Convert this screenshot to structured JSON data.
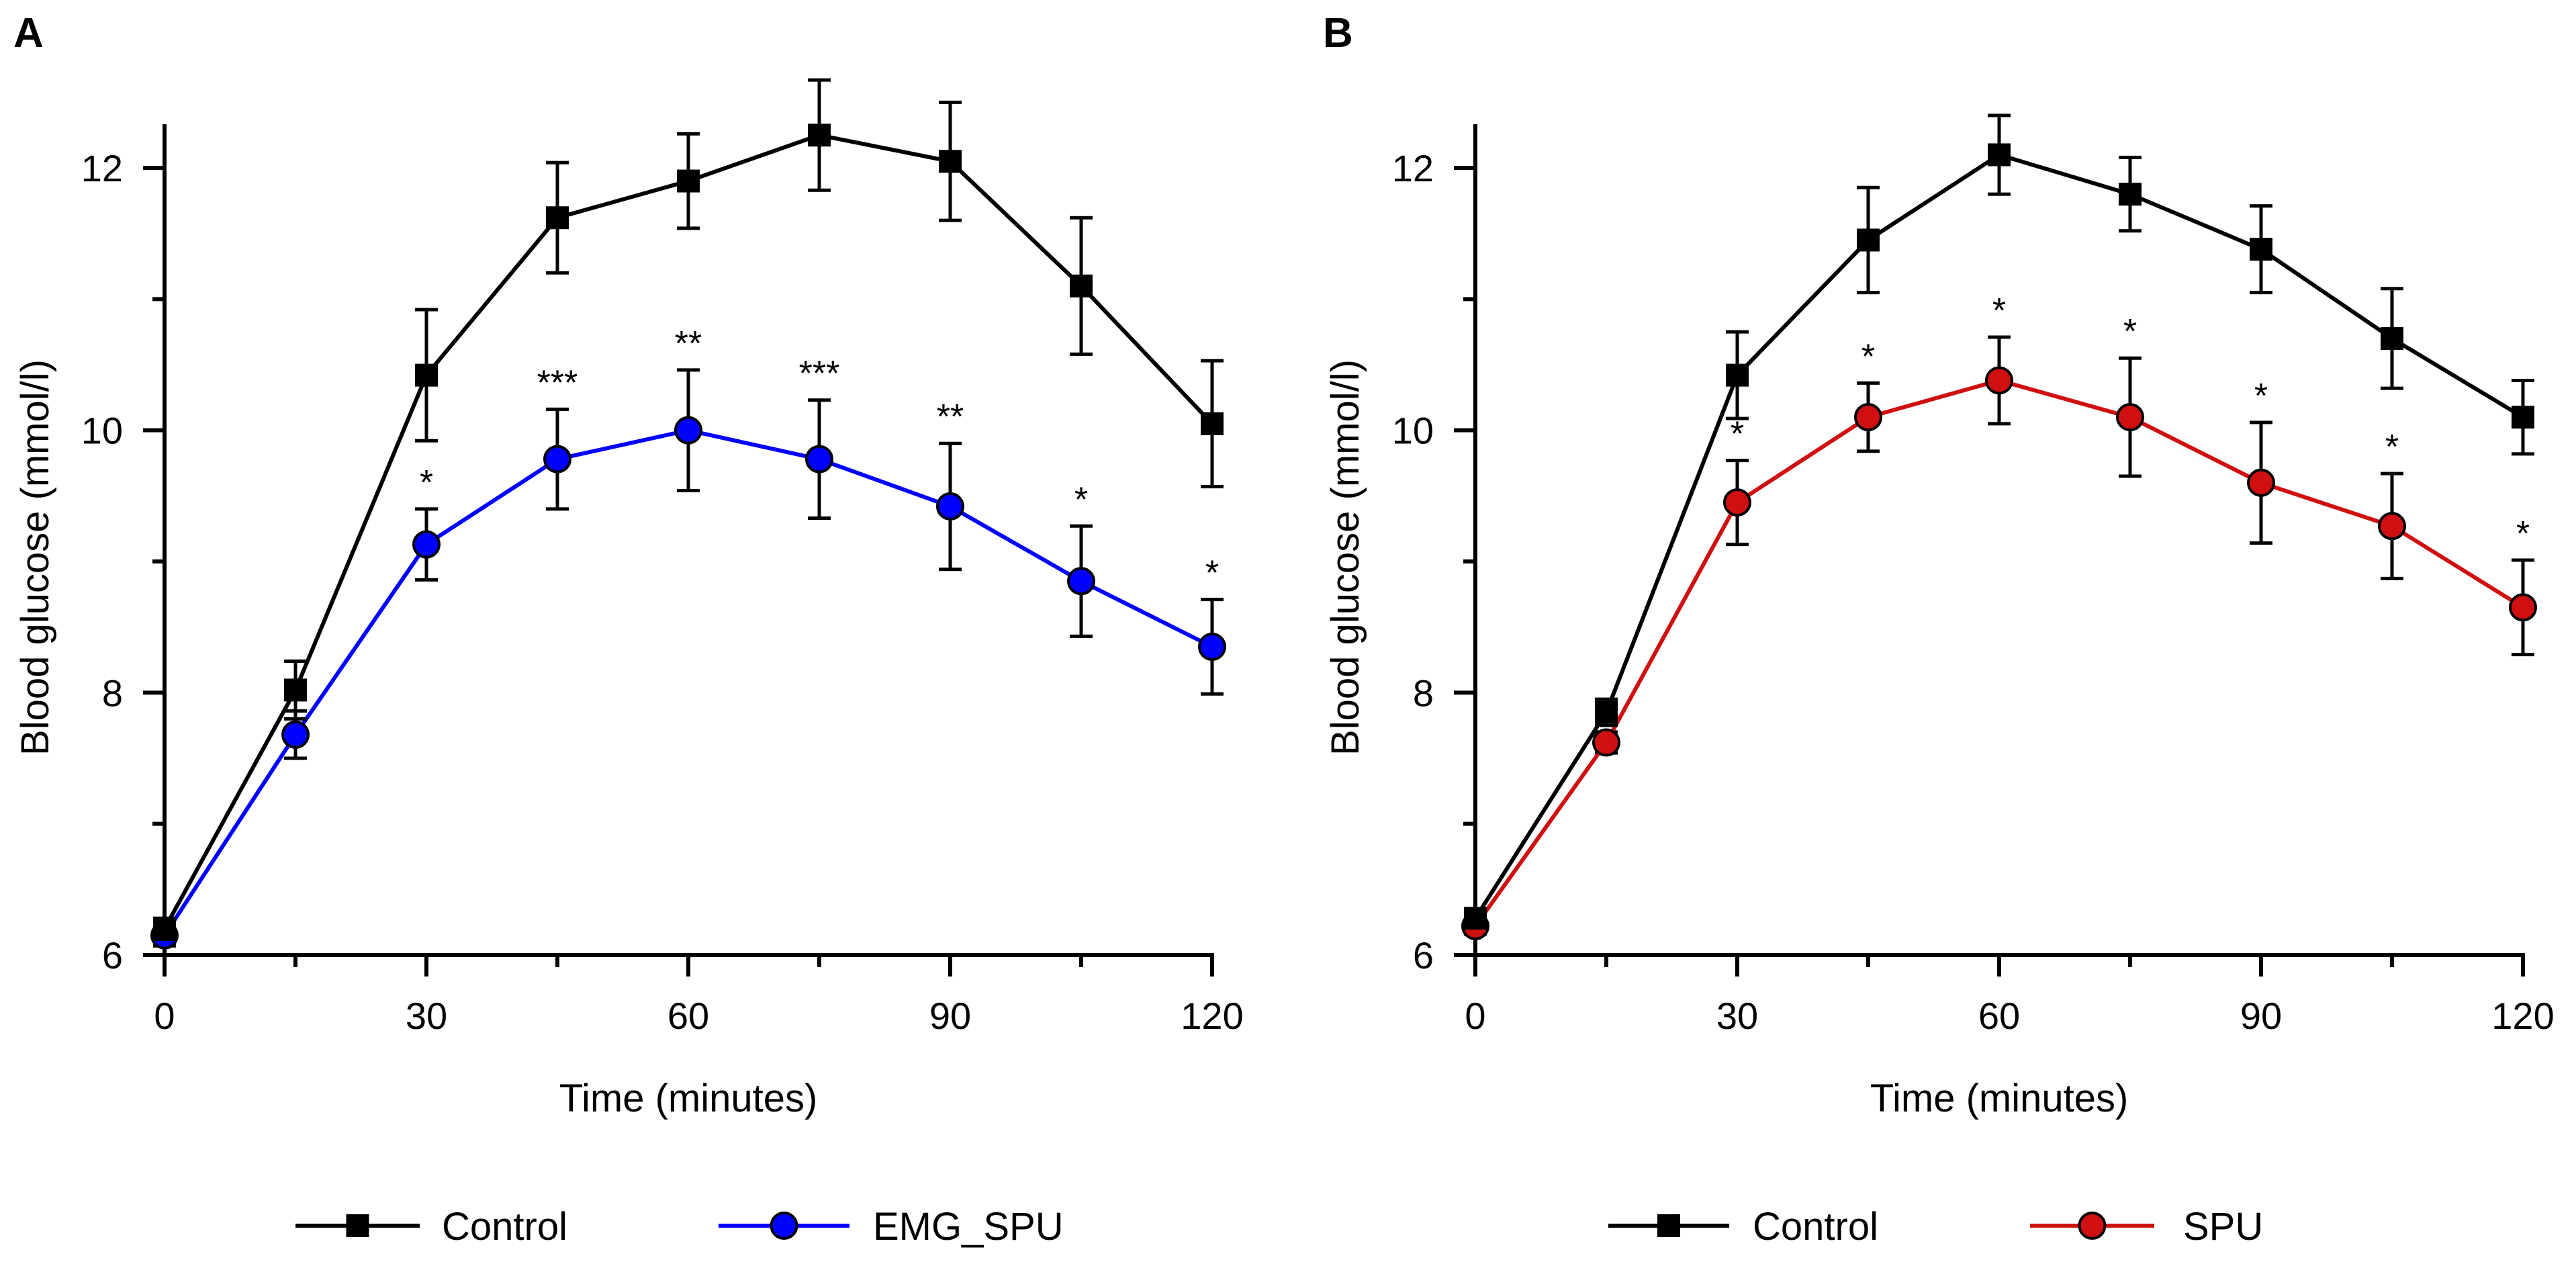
{
  "chart_data": [
    {
      "panel": "A",
      "type": "line",
      "xlabel": "Time (minutes)",
      "ylabel": "Blood glucose (mmol/l)",
      "xlim": [
        0,
        120
      ],
      "ylim": [
        6,
        12.6
      ],
      "x_ticks": [
        0,
        30,
        60,
        90,
        120
      ],
      "x_minor_ticks": [
        15,
        45,
        75,
        105
      ],
      "y_ticks": [
        6,
        8,
        10,
        12
      ],
      "y_minor_ticks": [
        7,
        9,
        11
      ],
      "x": [
        0,
        15,
        30,
        45,
        60,
        75,
        90,
        105,
        120
      ],
      "series": [
        {
          "name": "Control",
          "color": "#000000",
          "marker": "square",
          "values": [
            6.2,
            8.02,
            10.42,
            11.62,
            11.9,
            12.25,
            12.05,
            11.1,
            10.05
          ],
          "errors": [
            0.08,
            0.22,
            0.5,
            0.42,
            0.36,
            0.42,
            0.45,
            0.52,
            0.48
          ]
        },
        {
          "name": "EMG_SPU",
          "color": "#0000ff",
          "marker": "circle",
          "values": [
            6.15,
            7.68,
            9.13,
            9.78,
            10.0,
            9.78,
            9.42,
            8.85,
            8.35
          ],
          "errors": [
            0.08,
            0.18,
            0.27,
            0.38,
            0.46,
            0.45,
            0.48,
            0.42,
            0.36
          ]
        }
      ],
      "significance": [
        "",
        "",
        "*",
        "***",
        "**",
        "***",
        "**",
        "*",
        "*"
      ],
      "legend_position": "bottom"
    },
    {
      "panel": "B",
      "type": "line",
      "xlabel": "Time (minutes)",
      "ylabel": "Blood glucose (mmol/l)",
      "xlim": [
        0,
        120
      ],
      "ylim": [
        6,
        12.6
      ],
      "x_ticks": [
        0,
        30,
        60,
        90,
        120
      ],
      "x_minor_ticks": [
        15,
        45,
        75,
        105
      ],
      "y_ticks": [
        6,
        8,
        10,
        12
      ],
      "y_minor_ticks": [
        7,
        9,
        11
      ],
      "x": [
        0,
        15,
        30,
        45,
        60,
        75,
        90,
        105,
        120
      ],
      "series": [
        {
          "name": "Control",
          "color": "#000000",
          "marker": "square",
          "values": [
            6.28,
            7.85,
            10.42,
            11.45,
            12.1,
            11.8,
            11.38,
            10.7,
            10.1
          ],
          "errors": [
            0.06,
            0.1,
            0.33,
            0.4,
            0.3,
            0.28,
            0.33,
            0.38,
            0.28
          ]
        },
        {
          "name": "SPU",
          "color": "#d01010",
          "marker": "circle",
          "values": [
            6.22,
            7.62,
            9.45,
            10.1,
            10.38,
            10.1,
            9.6,
            9.27,
            8.65
          ],
          "errors": [
            0.06,
            0.08,
            0.32,
            0.26,
            0.33,
            0.45,
            0.46,
            0.4,
            0.36
          ]
        }
      ],
      "significance": [
        "",
        "",
        "*",
        "*",
        "*",
        "*",
        "*",
        "*",
        "*"
      ],
      "legend_position": "bottom"
    }
  ]
}
